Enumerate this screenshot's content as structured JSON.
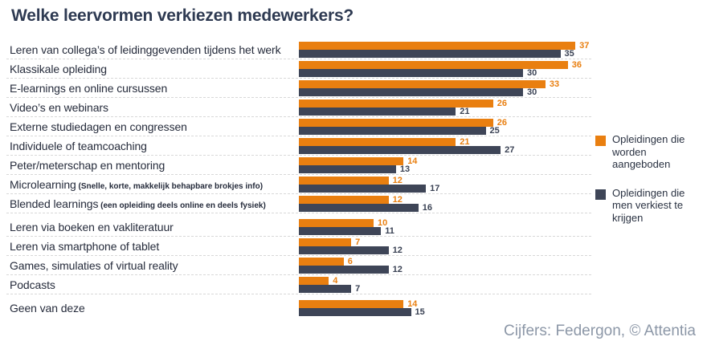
{
  "title": "Welke leervormen verkiezen medewerkers?",
  "credit": "Cijfers: Federgon, © Attentia",
  "legend": {
    "items": [
      {
        "label": "Opleidingen die worden aangeboden"
      },
      {
        "label": "Opleidingen die men verkiest te krijgen"
      }
    ]
  },
  "chart_data": {
    "type": "bar",
    "orientation": "horizontal",
    "title": "Welke leervormen verkiezen medewerkers?",
    "categories": [
      {
        "label": "Leren van collega’s of leidinggevenden tijdens het werk",
        "note": ""
      },
      {
        "label": "Klassikale opleiding",
        "note": ""
      },
      {
        "label": "E-learnings en online cursussen",
        "note": ""
      },
      {
        "label": "Video’s en webinars",
        "note": ""
      },
      {
        "label": "Externe studiedagen en congressen",
        "note": ""
      },
      {
        "label": "Individuele of teamcoaching",
        "note": ""
      },
      {
        "label": "Peter/meterschap en mentoring",
        "note": ""
      },
      {
        "label": "Microlearning",
        "note": "(Snelle, korte, makkelijk behapbare brokjes info)"
      },
      {
        "label": "Blended learnings",
        "note": "(een opleiding deels online en deels fysiek)"
      },
      {
        "label": "Leren via boeken en vakliteratuur",
        "note": ""
      },
      {
        "label": "Leren via smartphone of tablet",
        "note": ""
      },
      {
        "label": "Games, simulaties of virtual reality",
        "note": ""
      },
      {
        "label": "Podcasts",
        "note": ""
      },
      {
        "label": "Geen van deze",
        "note": ""
      }
    ],
    "series": [
      {
        "name": "Opleidingen die worden aangeboden",
        "color": "#E97F10",
        "value_label_color": "#E97F10",
        "values": [
          37,
          36,
          33,
          26,
          26,
          21,
          14,
          12,
          12,
          10,
          7,
          6,
          4,
          14
        ]
      },
      {
        "name": "Opleidingen die men verkiest te krijgen",
        "color": "#3E4557",
        "value_label_color": "#3A4254",
        "values": [
          35,
          30,
          30,
          21,
          25,
          27,
          13,
          17,
          16,
          11,
          12,
          12,
          7,
          15
        ]
      }
    ],
    "xlim": [
      0,
      40
    ],
    "value_labels": true,
    "grid": false,
    "legend_position": "right"
  }
}
